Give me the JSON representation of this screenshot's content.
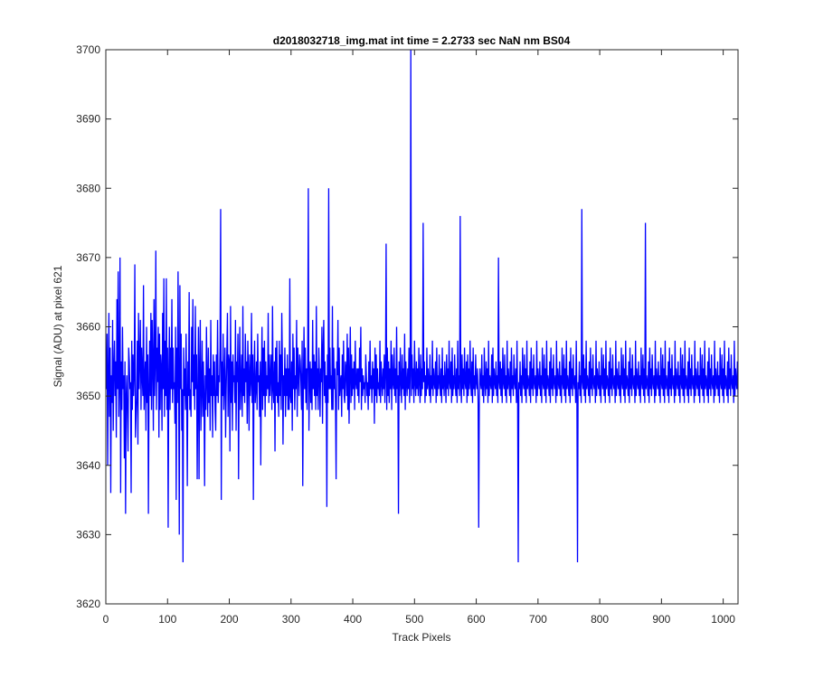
{
  "figure": {
    "background": "#ffffff",
    "axes_color": "#262626"
  },
  "chart_data": {
    "type": "line",
    "title": "d2018032718_img.mat int time = 2.2733 sec  NaN nm BS04",
    "xlabel": "Track Pixels",
    "ylabel": "Signal (ADU) at pixel 621",
    "xlim": [
      0,
      1024
    ],
    "ylim": [
      3620,
      3700
    ],
    "x_ticks": [
      0,
      100,
      200,
      300,
      400,
      500,
      600,
      700,
      800,
      900,
      1000
    ],
    "y_ticks": [
      3620,
      3630,
      3640,
      3650,
      3660,
      3670,
      3680,
      3690,
      3700
    ],
    "x_tick_labels": [
      "0",
      "100",
      "200",
      "300",
      "400",
      "500",
      "600",
      "700",
      "800",
      "900",
      "1000"
    ],
    "y_tick_labels": [
      "3620",
      "3630",
      "3640",
      "3650",
      "3660",
      "3670",
      "3680",
      "3690",
      "3700"
    ],
    "grid": false,
    "box": true,
    "series": [
      {
        "color": "#0000ff",
        "x_start": 1,
        "x_step": 1,
        "y": [
          3651,
          3659,
          3640,
          3653,
          3662,
          3647,
          3657,
          3636,
          3653,
          3649,
          3661,
          3645,
          3654,
          3658,
          3650,
          3655,
          3644,
          3664,
          3651,
          3668,
          3647,
          3652,
          3670,
          3636,
          3655,
          3648,
          3660,
          3651,
          3653,
          3641,
          3655,
          3633,
          3650,
          3653,
          3647,
          3642,
          3657,
          3655,
          3651,
          3652,
          3636,
          3658,
          3648,
          3656,
          3650,
          3653,
          3669,
          3644,
          3647,
          3650,
          3658,
          3643,
          3662,
          3651,
          3655,
          3661,
          3648,
          3657,
          3653,
          3650,
          3666,
          3648,
          3652,
          3655,
          3645,
          3660,
          3649,
          3656,
          3633,
          3651,
          3658,
          3650,
          3662,
          3648,
          3661,
          3655,
          3645,
          3664,
          3650,
          3655,
          3671,
          3648,
          3657,
          3652,
          3660,
          3644,
          3659,
          3648,
          3656,
          3654,
          3645,
          3662,
          3651,
          3667,
          3647,
          3658,
          3650,
          3667,
          3648,
          3657,
          3631,
          3653,
          3660,
          3648,
          3657,
          3651,
          3664,
          3649,
          3657,
          3651,
          3652,
          3646,
          3660,
          3635,
          3657,
          3649,
          3668,
          3652,
          3630,
          3666,
          3651,
          3659,
          3645,
          3651,
          3626,
          3657,
          3650,
          3654,
          3648,
          3659,
          3650,
          3637,
          3655,
          3650,
          3665,
          3648,
          3651,
          3647,
          3660,
          3652,
          3664,
          3650,
          3656,
          3648,
          3663,
          3651,
          3656,
          3638,
          3650,
          3660,
          3638,
          3654,
          3661,
          3645,
          3651,
          3658,
          3647,
          3655,
          3650,
          3637,
          3653,
          3648,
          3660,
          3652,
          3647,
          3657,
          3649,
          3654,
          3645,
          3661,
          3650,
          3653,
          3644,
          3656,
          3650,
          3655,
          3648,
          3645,
          3656,
          3650,
          3661,
          3649,
          3653,
          3652,
          3657,
          3677,
          3635,
          3655,
          3650,
          3659,
          3648,
          3652,
          3657,
          3644,
          3651,
          3656,
          3662,
          3647,
          3656,
          3655,
          3642,
          3663,
          3649,
          3655,
          3645,
          3656,
          3652,
          3653,
          3649,
          3661,
          3645,
          3655,
          3652,
          3659,
          3638,
          3653,
          3660,
          3648,
          3652,
          3656,
          3647,
          3663,
          3650,
          3654,
          3649,
          3659,
          3652,
          3655,
          3646,
          3658,
          3653,
          3645,
          3656,
          3650,
          3652,
          3662,
          3649,
          3656,
          3635,
          3653,
          3658,
          3649,
          3651,
          3655,
          3648,
          3659,
          3652,
          3653,
          3647,
          3655,
          3640,
          3653,
          3660,
          3648,
          3657,
          3650,
          3658,
          3647,
          3655,
          3650,
          3653,
          3651,
          3662,
          3649,
          3656,
          3650,
          3653,
          3656,
          3648,
          3663,
          3651,
          3649,
          3655,
          3642,
          3657,
          3650,
          3658,
          3649,
          3652,
          3647,
          3658,
          3650,
          3656,
          3648,
          3662,
          3655,
          3643,
          3653,
          3650,
          3657,
          3647,
          3654,
          3650,
          3656,
          3648,
          3654,
          3648,
          3667,
          3650,
          3649,
          3655,
          3645,
          3659,
          3651,
          3657,
          3648,
          3653,
          3651,
          3661,
          3647,
          3657,
          3653,
          3650,
          3656,
          3655,
          3652,
          3648,
          3658,
          3637,
          3652,
          3660,
          3651,
          3657,
          3649,
          3654,
          3648,
          3655,
          3680,
          3645,
          3652,
          3655,
          3649,
          3654,
          3648,
          3661,
          3651,
          3656,
          3650,
          3655,
          3648,
          3663,
          3650,
          3654,
          3648,
          3657,
          3653,
          3647,
          3654,
          3652,
          3660,
          3646,
          3657,
          3661,
          3650,
          3655,
          3649,
          3653,
          3634,
          3656,
          3649,
          3680,
          3651,
          3657,
          3651,
          3653,
          3648,
          3663,
          3648,
          3657,
          3651,
          3654,
          3649,
          3638,
          3655,
          3653,
          3661,
          3648,
          3657,
          3650,
          3652,
          3653,
          3647,
          3656,
          3651,
          3658,
          3650,
          3649,
          3655,
          3654,
          3650,
          3659,
          3648,
          3657,
          3646,
          3653,
          3660,
          3649,
          3656,
          3650,
          3654,
          3651,
          3655,
          3648,
          3658,
          3652,
          3651,
          3654,
          3650,
          3654,
          3649,
          3657,
          3652,
          3660,
          3648,
          3654,
          3650,
          3653,
          3651,
          3652,
          3649,
          3656,
          3653,
          3650,
          3652,
          3648,
          3655,
          3650,
          3658,
          3651,
          3653,
          3649,
          3655,
          3651,
          3654,
          3646,
          3657,
          3650,
          3656,
          3649,
          3654,
          3651,
          3652,
          3650,
          3658,
          3649,
          3655,
          3652,
          3650,
          3654,
          3651,
          3656,
          3649,
          3653,
          3672,
          3648,
          3657,
          3650,
          3655,
          3649,
          3654,
          3651,
          3658,
          3648,
          3656,
          3652,
          3651,
          3657,
          3650,
          3654,
          3649,
          3660,
          3651,
          3653,
          3633,
          3655,
          3650,
          3657,
          3652,
          3649,
          3656,
          3651,
          3654,
          3650,
          3659,
          3648,
          3655,
          3652,
          3650,
          3654,
          3651,
          3657,
          3649,
          3653,
          3700,
          3650,
          3656,
          3651,
          3654,
          3649,
          3658,
          3652,
          3650,
          3655,
          3651,
          3654,
          3650,
          3657,
          3652,
          3649,
          3656,
          3650,
          3654,
          3651,
          3675,
          3652,
          3655,
          3649,
          3653,
          3650,
          3657,
          3651,
          3654,
          3652,
          3650,
          3656,
          3649,
          3653,
          3651,
          3658,
          3650,
          3654,
          3652,
          3651,
          3655,
          3649,
          3657,
          3650,
          3653,
          3651,
          3656,
          3652,
          3650,
          3654,
          3649,
          3657,
          3651,
          3653,
          3650,
          3655,
          3652,
          3649,
          3656,
          3651,
          3654,
          3650,
          3658,
          3652,
          3651,
          3655,
          3649,
          3657,
          3650,
          3653,
          3651,
          3656,
          3652,
          3650,
          3654,
          3649,
          3658,
          3651,
          3653,
          3650,
          3676,
          3652,
          3649,
          3656,
          3651,
          3654,
          3650,
          3657,
          3652,
          3651,
          3655,
          3649,
          3656,
          3650,
          3654,
          3651,
          3658,
          3652,
          3650,
          3655,
          3649,
          3657,
          3651,
          3653,
          3650,
          3656,
          3652,
          3651,
          3654,
          3649,
          3631,
          3650,
          3654,
          3652,
          3651,
          3656,
          3650,
          3653,
          3649,
          3657,
          3652,
          3650,
          3655,
          3651,
          3654,
          3649,
          3658,
          3650,
          3653,
          3652,
          3651,
          3656,
          3649,
          3657,
          3650,
          3654,
          3652,
          3651,
          3655,
          3650,
          3653,
          3649,
          3670,
          3652,
          3651,
          3655,
          3650,
          3654,
          3649,
          3657,
          3652,
          3651,
          3656,
          3650,
          3653,
          3649,
          3658,
          3651,
          3654,
          3652,
          3650,
          3655,
          3649,
          3657,
          3651,
          3653,
          3650,
          3656,
          3652,
          3651,
          3654,
          3649,
          3658,
          3650,
          3626,
          3652,
          3651,
          3655,
          3650,
          3653,
          3649,
          3657,
          3652,
          3651,
          3656,
          3650,
          3654,
          3649,
          3658,
          3651,
          3653,
          3652,
          3650,
          3655,
          3649,
          3657,
          3651,
          3654,
          3650,
          3656,
          3652,
          3651,
          3653,
          3649,
          3658,
          3650,
          3654,
          3652,
          3651,
          3655,
          3650,
          3653,
          3649,
          3657,
          3652,
          3651,
          3656,
          3650,
          3654,
          3649,
          3658,
          3651,
          3653,
          3652,
          3650,
          3655,
          3649,
          3657,
          3651,
          3654,
          3650,
          3656,
          3652,
          3651,
          3653,
          3649,
          3658,
          3650,
          3654,
          3652,
          3651,
          3655,
          3650,
          3653,
          3649,
          3657,
          3652,
          3651,
          3656,
          3650,
          3654,
          3649,
          3658,
          3651,
          3653,
          3652,
          3650,
          3655,
          3649,
          3657,
          3651,
          3654,
          3650,
          3656,
          3652,
          3651,
          3653,
          3649,
          3658,
          3650,
          3626,
          3652,
          3651,
          3655,
          3650,
          3653,
          3649,
          3677,
          3652,
          3651,
          3656,
          3650,
          3654,
          3649,
          3658,
          3651,
          3653,
          3652,
          3650,
          3655,
          3649,
          3657,
          3651,
          3654,
          3650,
          3656,
          3652,
          3651,
          3653,
          3649,
          3658,
          3650,
          3654,
          3652,
          3651,
          3655,
          3650,
          3653,
          3649,
          3657,
          3652,
          3651,
          3656,
          3650,
          3654,
          3649,
          3658,
          3651,
          3653,
          3652,
          3650,
          3655,
          3649,
          3657,
          3651,
          3654,
          3650,
          3656,
          3652,
          3651,
          3653,
          3649,
          3658,
          3650,
          3654,
          3652,
          3651,
          3655,
          3650,
          3653,
          3649,
          3657,
          3652,
          3651,
          3656,
          3650,
          3654,
          3649,
          3658,
          3651,
          3653,
          3652,
          3650,
          3655,
          3649,
          3657,
          3651,
          3654,
          3650,
          3656,
          3652,
          3651,
          3653,
          3649,
          3658,
          3650,
          3654,
          3652,
          3651,
          3655,
          3650,
          3653,
          3649,
          3657,
          3652,
          3651,
          3656,
          3650,
          3654,
          3649,
          3675,
          3651,
          3653,
          3652,
          3650,
          3655,
          3649,
          3657,
          3651,
          3654,
          3650,
          3656,
          3652,
          3651,
          3653,
          3649,
          3658,
          3650,
          3654,
          3652,
          3651,
          3655,
          3650,
          3653,
          3649,
          3657,
          3652,
          3651,
          3656,
          3650,
          3654,
          3649,
          3658,
          3651,
          3653,
          3652,
          3650,
          3655,
          3649,
          3657,
          3651,
          3654,
          3650,
          3656,
          3652,
          3651,
          3653,
          3649,
          3658,
          3650,
          3654,
          3652,
          3651,
          3655,
          3650,
          3653,
          3649,
          3657,
          3652,
          3651,
          3656,
          3650,
          3654,
          3649,
          3658,
          3651,
          3653,
          3652,
          3650,
          3655,
          3649,
          3657,
          3651,
          3654,
          3650,
          3656,
          3652,
          3651,
          3653,
          3649,
          3658,
          3650,
          3654,
          3652,
          3651,
          3655,
          3650,
          3653,
          3649,
          3657,
          3652,
          3651,
          3656,
          3650,
          3654,
          3649,
          3658,
          3651,
          3653,
          3652,
          3650,
          3655,
          3649,
          3657,
          3651,
          3654,
          3650,
          3656,
          3652,
          3651,
          3653,
          3649,
          3658,
          3650,
          3654,
          3652,
          3651,
          3655,
          3650,
          3653,
          3649,
          3657,
          3652,
          3651,
          3656,
          3650,
          3654,
          3649,
          3658,
          3651,
          3653,
          3652,
          3650,
          3655,
          3649,
          3657,
          3651,
          3654,
          3650,
          3656,
          3652,
          3651,
          3653,
          3649,
          3658,
          3650,
          3654,
          3652,
          3651,
          3655,
          3650,
          3653,
          3649,
          3657,
          3652,
          3651,
          3656,
          3650,
          3654,
          3649,
          3658,
          3651,
          3653,
          3652,
          3650,
          3655,
          3649,
          3657,
          3651,
          3654
        ]
      }
    ]
  }
}
